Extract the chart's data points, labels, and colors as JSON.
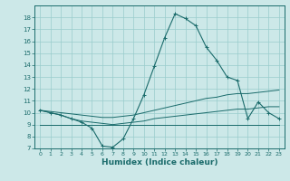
{
  "xlabel": "Humidex (Indice chaleur)",
  "bg_color": "#cce8e8",
  "grid_color": "#99cccc",
  "line_color": "#1a6b6b",
  "xlim": [
    -0.5,
    23.5
  ],
  "ylim": [
    7,
    19
  ],
  "yticks": [
    7,
    8,
    9,
    10,
    11,
    12,
    13,
    14,
    15,
    16,
    17,
    18
  ],
  "xticks": [
    0,
    1,
    2,
    3,
    4,
    5,
    6,
    7,
    8,
    9,
    10,
    11,
    12,
    13,
    14,
    15,
    16,
    17,
    18,
    19,
    20,
    21,
    22,
    23
  ],
  "line1": {
    "x": [
      0,
      1,
      2,
      3,
      4,
      5,
      6,
      7,
      8,
      9,
      10,
      11,
      12,
      13,
      14,
      15,
      16,
      17,
      18,
      19,
      20,
      21,
      22,
      23
    ],
    "y": [
      10.2,
      10.0,
      9.8,
      9.5,
      9.2,
      8.7,
      7.2,
      7.1,
      7.8,
      9.5,
      11.5,
      13.9,
      16.3,
      18.3,
      17.9,
      17.3,
      15.5,
      14.4,
      13.0,
      12.7,
      9.5,
      10.9,
      10.0,
      9.5
    ]
  },
  "line2": {
    "x": [
      0,
      1,
      2,
      3,
      4,
      5,
      6,
      7,
      8,
      9,
      10,
      11,
      12,
      13,
      14,
      15,
      16,
      17,
      18,
      19,
      20,
      21,
      22,
      23
    ],
    "y": [
      10.2,
      10.1,
      10.0,
      9.9,
      9.8,
      9.7,
      9.6,
      9.6,
      9.7,
      9.8,
      10.0,
      10.2,
      10.4,
      10.6,
      10.8,
      11.0,
      11.2,
      11.3,
      11.5,
      11.6,
      11.6,
      11.7,
      11.8,
      11.9
    ]
  },
  "line3": {
    "x": [
      0,
      1,
      2,
      3,
      4,
      5,
      6,
      7,
      8,
      9,
      10,
      11,
      12,
      13,
      14,
      15,
      16,
      17,
      18,
      19,
      20,
      21,
      22,
      23
    ],
    "y": [
      10.2,
      10.0,
      9.8,
      9.5,
      9.3,
      9.2,
      9.1,
      9.0,
      9.1,
      9.2,
      9.3,
      9.5,
      9.6,
      9.7,
      9.8,
      9.9,
      10.0,
      10.1,
      10.2,
      10.3,
      10.3,
      10.4,
      10.5,
      10.5
    ]
  },
  "line4": {
    "x": [
      0,
      23
    ],
    "y": [
      9.0,
      9.0
    ]
  }
}
